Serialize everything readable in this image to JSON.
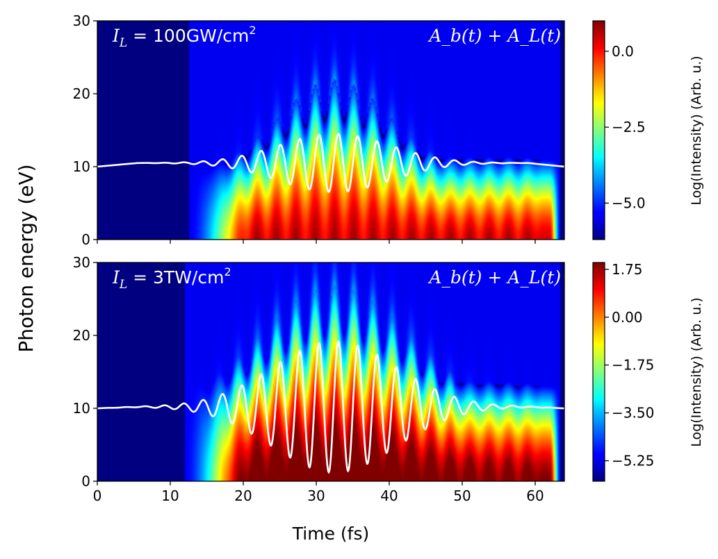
{
  "chart_data": [
    {
      "type": "heatmap",
      "panel": "top",
      "annotation_left": {
        "prefix": "I",
        "sub": "L",
        "value": " = 100GW/cm",
        "sup": "2"
      },
      "annotation_right": "A_b(t) + A_L(t)",
      "xlim": [
        0,
        64
      ],
      "ylim": [
        0,
        30
      ],
      "y_ticks": [
        0,
        10,
        20,
        30
      ],
      "colorbar": {
        "label": "Log(Intensity) (Arb. u.)",
        "range": [
          -6.2,
          1.0
        ],
        "ticks": [
          0.0,
          -2.5,
          -5.0
        ],
        "tick_labels": [
          "0.0",
          "−2.5",
          "−5.0"
        ]
      },
      "signal": {
        "onset_fs": 12.5,
        "end_fs": 63.5,
        "max_cutoff_eV": 22
      },
      "vector_potential_curve": {
        "baseline_eV": 10.5,
        "center_fs": 32.5,
        "period_fs": 2.65,
        "max_amplitude_eV": 4.0,
        "width_fs": 8.5,
        "x_fs": [
          0,
          5.5,
          59,
          64
        ],
        "y_eV": [
          10.0,
          10.5,
          10.5,
          10.0
        ]
      }
    },
    {
      "type": "heatmap",
      "panel": "bottom",
      "annotation_left": {
        "prefix": "I",
        "sub": "L",
        "value": " = 3TW/cm",
        "sup": "2"
      },
      "annotation_right": "A_b(t) + A_L(t)",
      "xlim": [
        0,
        64
      ],
      "ylim": [
        0,
        30
      ],
      "y_ticks": [
        0,
        10,
        20,
        30
      ],
      "x_ticks": [
        0,
        10,
        20,
        30,
        40,
        50,
        60
      ],
      "colorbar": {
        "label": "Log(Intensity) (Arb. u.)",
        "range": [
          -6.0,
          2.0
        ],
        "ticks": [
          1.75,
          0.0,
          -1.75,
          -3.5,
          -5.25
        ],
        "tick_labels": [
          "1.75",
          "0.00",
          "−1.75",
          "−3.50",
          "−5.25"
        ]
      },
      "signal": {
        "onset_fs": 12.0,
        "end_fs": 63.5,
        "max_cutoff_eV": 27
      },
      "vector_potential_curve": {
        "baseline_eV": 10.2,
        "center_fs": 32.5,
        "period_fs": 2.65,
        "max_amplitude_eV": 9.0,
        "width_fs": 9.5,
        "x_fs": [
          0,
          5.5,
          59,
          64
        ],
        "y_eV": [
          10.0,
          10.2,
          10.2,
          10.0
        ]
      }
    }
  ],
  "xlabel": "Time (fs)",
  "ylabel": "Photon energy (eV)",
  "colormap": "jet"
}
